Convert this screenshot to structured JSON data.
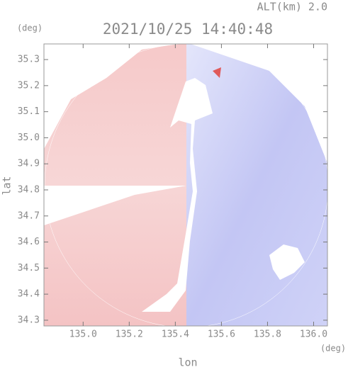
{
  "chart_data": {
    "type": "radar-map",
    "title": "2021/10/25 14:40:48",
    "subtitle": "ALT(km) 2.0",
    "x_label": "lon",
    "y_label": "lat",
    "x_unit": "(deg)",
    "y_unit": "(deg)",
    "xlim": [
      134.83,
      136.06
    ],
    "ylim": [
      34.278,
      35.36
    ],
    "xticks": [
      {
        "value": 135,
        "label": "135.0"
      },
      135.2,
      135.4,
      135.6,
      135.8,
      {
        "value": 136,
        "label": "136.0"
      }
    ],
    "yticks": [
      34.3,
      34.4,
      34.5,
      34.6,
      34.7,
      34.8,
      34.9,
      {
        "value": 35,
        "label": "35.0"
      },
      35.1,
      35.2,
      35.3
    ]
  }
}
